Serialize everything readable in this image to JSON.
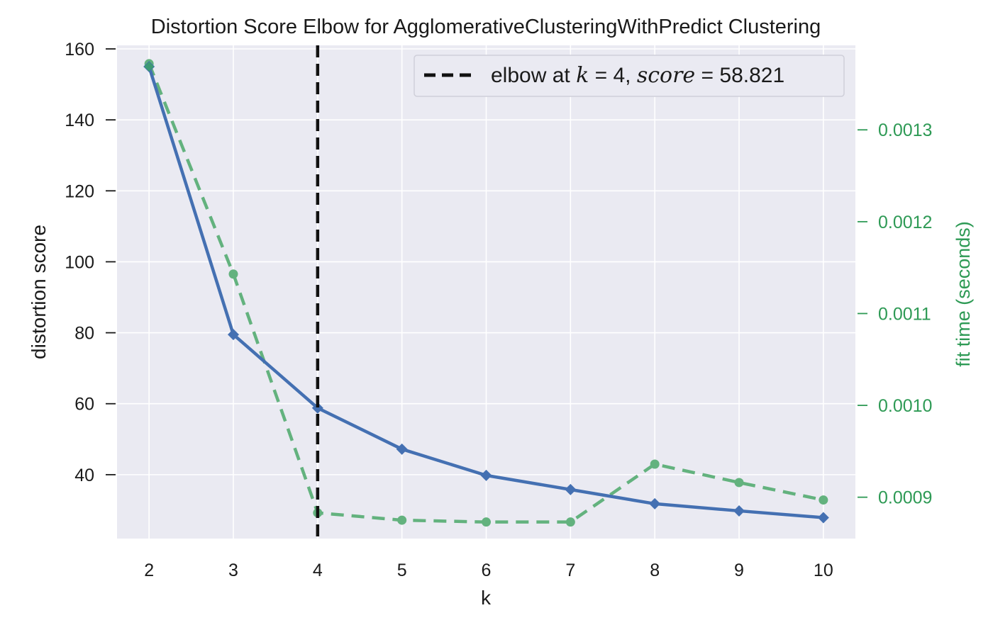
{
  "chart_data": {
    "type": "line",
    "title": "Distortion Score Elbow for AgglomerativeClusteringWithPredict Clustering",
    "xlabel": "k",
    "ylabel": "distortion score",
    "y2label": "fit time (seconds)",
    "x": [
      2,
      3,
      4,
      5,
      6,
      7,
      8,
      9,
      10
    ],
    "xlim": [
      1.62,
      10.38
    ],
    "ylim": [
      22,
      161
    ],
    "y2lim": [
      0.000855,
      0.001392
    ],
    "x_ticks": [
      "2",
      "3",
      "4",
      "5",
      "6",
      "7",
      "8",
      "9",
      "10"
    ],
    "y_ticks": [
      40,
      60,
      80,
      100,
      120,
      140,
      160
    ],
    "y_tick_labels": [
      "40",
      "60",
      "80",
      "100",
      "120",
      "140",
      "160"
    ],
    "y2_ticks": [
      0.0009,
      0.001,
      0.0011,
      0.0012,
      0.0013
    ],
    "y2_tick_labels": [
      "0.0009",
      "0.0010",
      "0.0011",
      "0.0012",
      "0.0013"
    ],
    "series": [
      {
        "name": "distortion score",
        "axis": "left",
        "color": "#4470b2",
        "marker": "diamond",
        "values": [
          155.0,
          79.5,
          58.8,
          47.2,
          39.8,
          35.8,
          31.8,
          29.8,
          27.9
        ]
      },
      {
        "name": "fit time (seconds)",
        "axis": "right",
        "color": "#63b27e",
        "marker": "circle",
        "line_style": "dashed",
        "values": [
          0.001372,
          0.001143,
          0.000883,
          0.000875,
          0.000873,
          0.000873,
          0.000936,
          0.000916,
          0.000897
        ]
      }
    ],
    "elbow": {
      "k": 4,
      "score": 58.821,
      "color": "#111111"
    },
    "legend": {
      "position": "top-right",
      "text_prefix": "elbow at ",
      "k_var": "k",
      "equals": " = ",
      "k_value": "4",
      "separator": ", ",
      "score_var": "score",
      "score_value": "58.821"
    },
    "grid": true,
    "background_color": "#eaeaf2",
    "right_axis_color": "#2e9a55"
  }
}
